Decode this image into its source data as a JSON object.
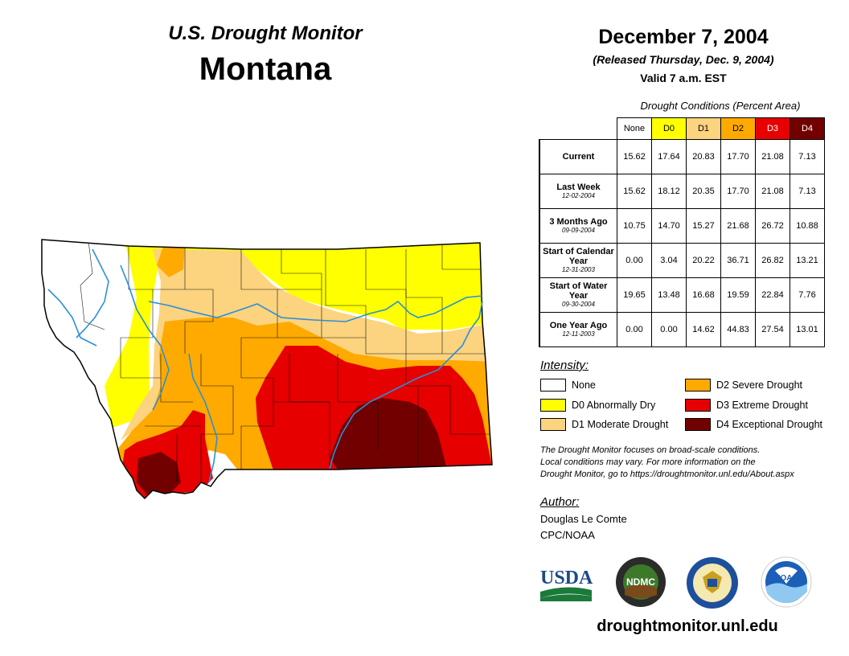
{
  "header": {
    "subtitle": "U.S. Drought Monitor",
    "state": "Montana",
    "date": "December 7, 2004",
    "released": "(Released Thursday, Dec. 9, 2004)",
    "valid": "Valid 7 a.m. EST"
  },
  "table": {
    "caption": "Drought Conditions (Percent Area)",
    "columns": [
      "None",
      "D0",
      "D1",
      "D2",
      "D3",
      "D4"
    ],
    "column_colors": [
      "#ffffff",
      "#ffff00",
      "#fcd37f",
      "#ffaa00",
      "#e60000",
      "#730000"
    ],
    "rows": [
      {
        "label": "Current",
        "date": "",
        "values": [
          "15.62",
          "17.64",
          "20.83",
          "17.70",
          "21.08",
          "7.13"
        ]
      },
      {
        "label": "Last Week",
        "date": "12-02-2004",
        "values": [
          "15.62",
          "18.12",
          "20.35",
          "17.70",
          "21.08",
          "7.13"
        ]
      },
      {
        "label": "3 Months Ago",
        "date": "09-09-2004",
        "values": [
          "10.75",
          "14.70",
          "15.27",
          "21.68",
          "26.72",
          "10.88"
        ]
      },
      {
        "label": "Start of Calendar Year",
        "date": "12-31-2003",
        "values": [
          "0.00",
          "3.04",
          "20.22",
          "36.71",
          "26.82",
          "13.21"
        ]
      },
      {
        "label": "Start of Water Year",
        "date": "09-30-2004",
        "values": [
          "19.65",
          "13.48",
          "16.68",
          "19.59",
          "22.84",
          "7.76"
        ]
      },
      {
        "label": "One Year Ago",
        "date": "12-11-2003",
        "values": [
          "0.00",
          "0.00",
          "14.62",
          "44.83",
          "27.54",
          "13.01"
        ]
      }
    ]
  },
  "legend": {
    "title": "Intensity:",
    "items": [
      {
        "label": "None",
        "color": "#ffffff"
      },
      {
        "label": "D0 Abnormally Dry",
        "color": "#ffff00"
      },
      {
        "label": "D1 Moderate Drought",
        "color": "#fcd37f"
      },
      {
        "label": "D2 Severe Drought",
        "color": "#ffaa00"
      },
      {
        "label": "D3 Extreme Drought",
        "color": "#e60000"
      },
      {
        "label": "D4 Exceptional Drought",
        "color": "#730000"
      }
    ]
  },
  "note": {
    "line1": "The Drought Monitor focuses on broad-scale conditions.",
    "line2": "Local conditions may vary. For more information on the",
    "line3": "Drought Monitor, go to https://droughtmonitor.unl.edu/About.aspx"
  },
  "author": {
    "title": "Author:",
    "name": "Douglas Le Comte",
    "org": "CPC/NOAA"
  },
  "logos": {
    "usda": "USDA",
    "ndmc": "NDMC",
    "noaa": "NOAA"
  },
  "footer": {
    "site": "droughtmonitor.unl.edu"
  },
  "map_icons": [
    "montana-map",
    "river-icon"
  ]
}
